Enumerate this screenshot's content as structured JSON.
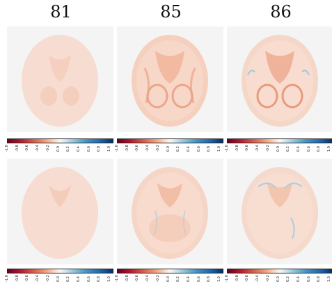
{
  "columns": [
    {
      "title": "81"
    },
    {
      "title": "85"
    },
    {
      "title": "86"
    }
  ],
  "colorbar": {
    "ticks": [
      "-1.0",
      "-0.8",
      "-0.6",
      "-0.4",
      "-0.2",
      "0.0",
      "0.2",
      "0.4",
      "0.6",
      "0.8",
      "1.0"
    ]
  }
}
